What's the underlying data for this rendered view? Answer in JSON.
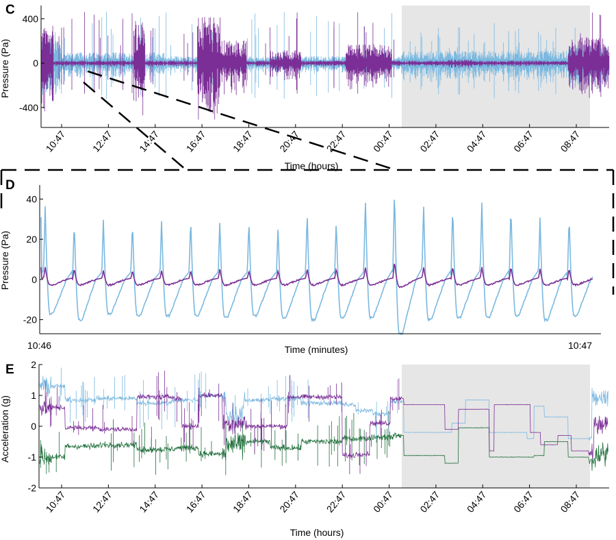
{
  "colors": {
    "light_blue": "#7ab8e0",
    "purple": "#7b2f96",
    "green": "#1e6e3a",
    "shade": "#e6e6e6"
  },
  "chart_data": [
    {
      "panel": "C",
      "type": "line",
      "xlabel": "Time (hours)",
      "ylabel": "Pressure (Pa)",
      "x_ticks": [
        "10:47",
        "12:47",
        "14:47",
        "16:47",
        "18:47",
        "20:47",
        "22:47",
        "00:47",
        "02:47",
        "04:47",
        "06:47",
        "08:47"
      ],
      "y_ticks": [
        400,
        0,
        -400
      ],
      "ylim": [
        -580,
        520
      ],
      "shaded_region": [
        "00:47 (approx. 01:00)",
        "08:47 (approx. 08:37)"
      ],
      "series": [
        {
          "color": "#7ab8e0",
          "description_values": "high-frequency pressure signal, mostly within -150..150 Pa, spikes to about ±400 Pa"
        },
        {
          "color": "#7b2f96",
          "description_values": "high-frequency pressure signal, bursts up to about ±500 Pa"
        }
      ]
    },
    {
      "panel": "D",
      "type": "line",
      "xlabel": "Time (minutes)",
      "ylabel": "Pressure (Pa)",
      "x_ticks": [
        "10:46",
        "10:47"
      ],
      "y_ticks": [
        40,
        20,
        0,
        -20
      ],
      "ylim": [
        -27,
        47
      ],
      "cycles": 18,
      "series": [
        {
          "color": "#7ab8e0",
          "peak_values": [
            37,
            29,
            30,
            29,
            30,
            31,
            30,
            30,
            27,
            34,
            30,
            41,
            46,
            38,
            37,
            39,
            37,
            31,
            32
          ],
          "trough_values": [
            -17,
            -20,
            -17,
            -18,
            -18,
            -18,
            -19,
            -18,
            -19,
            -20,
            -19,
            -19,
            -27,
            -20,
            -19,
            -19,
            -18,
            -20,
            -18
          ]
        },
        {
          "color": "#7b2f96",
          "peak_values": [
            7,
            6,
            5,
            5,
            5,
            5,
            6,
            5,
            5,
            6,
            6,
            7,
            10,
            7,
            7,
            7,
            7,
            6,
            6
          ],
          "trough_values": [
            -3,
            -3,
            -3,
            -3,
            -3,
            -3,
            -3,
            -3,
            -3,
            -3,
            -3,
            -3,
            -4,
            -3,
            -3,
            -3,
            -3,
            -3,
            -3
          ]
        }
      ]
    },
    {
      "panel": "E",
      "type": "line",
      "xlabel": "Time (hours)",
      "ylabel": "Acceleration (g)",
      "x_ticks": [
        "10:47",
        "12:47",
        "14:47",
        "16:47",
        "18:47",
        "20:47",
        "22:47",
        "00:47",
        "02:47",
        "04:47",
        "06:47",
        "08:47"
      ],
      "y_ticks": [
        2,
        1,
        0,
        -1,
        -2
      ],
      "ylim": [
        -2,
        2
      ],
      "shaded_region": [
        "00:47 (approx. 01:00)",
        "08:47 (approx. 08:37)"
      ],
      "series": [
        {
          "color": "#7ab8e0",
          "description_values": "mostly ≈0.8–1.0 g while awake, ≈-0.5 to 1.0 g during shaded period"
        },
        {
          "color": "#7b2f96",
          "description_values": "switches between ≈0 g and ≈1 g while awake, steps between ≈-0.9 and 0.8 g in shaded period"
        },
        {
          "color": "#1e6e3a",
          "description_values": "mostly ≈-0.5 to -0.8 g, ≈-1 g late in shaded period"
        }
      ]
    }
  ],
  "labels": {
    "panel_c": "C",
    "panel_d": "D",
    "panel_e": "E",
    "c_ylabel": "Pressure (Pa)",
    "c_xlabel": "Time (hours)",
    "d_ylabel": "Pressure (Pa)",
    "d_xlabel": "Time (minutes)",
    "e_ylabel": "Acceleration (g)",
    "e_xlabel": "Time (hours)",
    "d_xstart": "10:46",
    "d_xend": "10:47"
  }
}
